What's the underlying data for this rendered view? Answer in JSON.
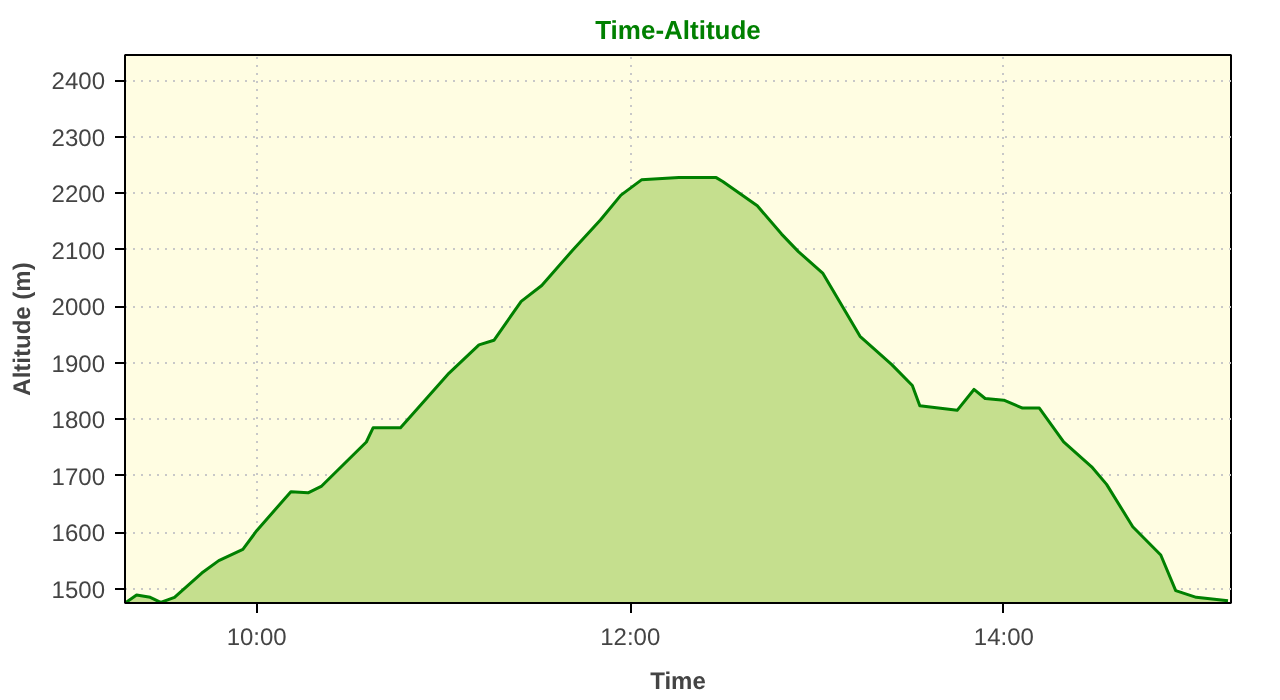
{
  "chart_data": {
    "type": "area",
    "title": "Time-Altitude",
    "xlabel": "Time",
    "ylabel": "Altitude (m)",
    "x": [
      9.3,
      9.357,
      9.43,
      9.486,
      9.56,
      9.706,
      9.797,
      9.926,
      10.0,
      10.183,
      10.275,
      10.348,
      10.587,
      10.623,
      10.77,
      11.03,
      11.19,
      11.27,
      11.416,
      11.526,
      11.69,
      11.84,
      11.95,
      12.06,
      12.26,
      12.46,
      12.495,
      12.68,
      12.81,
      12.9,
      13.03,
      13.23,
      13.4,
      13.51,
      13.55,
      13.75,
      13.84,
      13.9,
      14.0,
      14.1,
      14.19,
      14.32,
      14.47,
      14.55,
      14.69,
      14.84,
      14.92,
      15.03,
      15.2
    ],
    "series": [
      {
        "color": "#008000",
        "values": [
          1476,
          1489,
          1485,
          1476,
          1485,
          1528,
          1550,
          1570,
          1603,
          1672,
          1670,
          1682,
          1760,
          1785,
          1785,
          1882,
          1932,
          1940,
          2009,
          2037,
          2099,
          2153,
          2197,
          2224,
          2228,
          2228,
          2221,
          2178,
          2128,
          2097,
          2059,
          1947,
          1897,
          1860,
          1824,
          1816,
          1853,
          1837,
          1834,
          1820,
          1820,
          1760,
          1716,
          1685,
          1610,
          1560,
          1497,
          1485,
          1479
        ]
      }
    ],
    "xlim": [
      9.295,
      15.216
    ],
    "ylim": [
      1475,
      2445
    ],
    "xticks": [
      {
        "value": 10,
        "label": "10:00"
      },
      {
        "value": 12,
        "label": "12:00"
      },
      {
        "value": 14,
        "label": "14:00"
      }
    ],
    "yticks": [
      1500,
      1600,
      1700,
      1800,
      1900,
      2000,
      2100,
      2200,
      2300,
      2400
    ],
    "grid": true
  }
}
